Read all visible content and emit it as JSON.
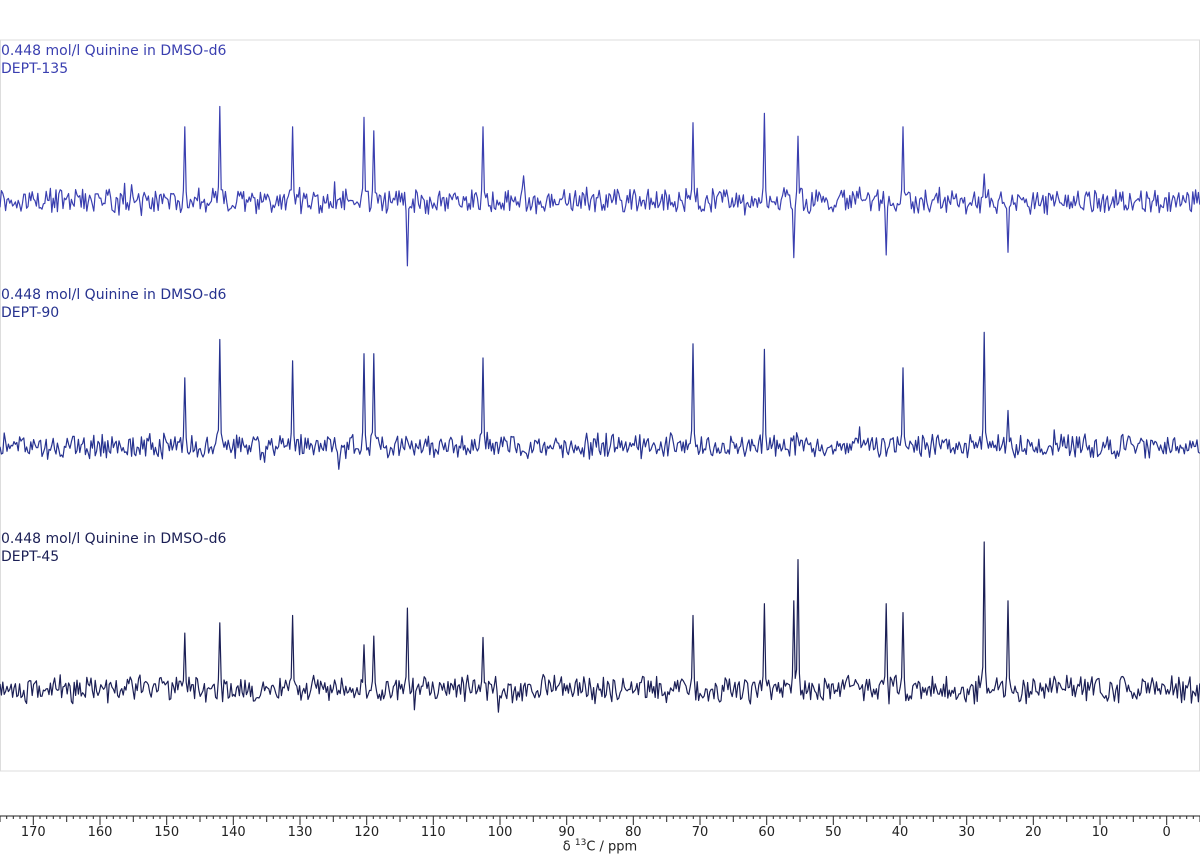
{
  "chart_data": {
    "type": "line",
    "xlabel_prefix": "δ ",
    "xlabel_sup": "13",
    "xlabel_suffix": "C / ppm",
    "xlim": [
      175,
      -5
    ],
    "x_reversed": true,
    "x_ticks": [
      170,
      160,
      150,
      140,
      130,
      120,
      110,
      100,
      90,
      80,
      70,
      60,
      50,
      40,
      30,
      20,
      10,
      0
    ],
    "series": [
      {
        "line1": "0.448 mol/l Quinine in DMSO-d6",
        "line2": "DEPT-135",
        "color": "#3a3fb0",
        "peaks": [
          {
            "x": 147.2,
            "y": 0.55
          },
          {
            "x": 142.1,
            "y": 0.7
          },
          {
            "x": 131.2,
            "y": 0.55
          },
          {
            "x": 120.5,
            "y": 0.62
          },
          {
            "x": 118.9,
            "y": 0.52
          },
          {
            "x": 113.9,
            "y": -0.48
          },
          {
            "x": 102.5,
            "y": 0.55
          },
          {
            "x": 71.1,
            "y": 0.58
          },
          {
            "x": 60.4,
            "y": 0.65
          },
          {
            "x": 56.0,
            "y": -0.42
          },
          {
            "x": 55.4,
            "y": 0.48
          },
          {
            "x": 42.1,
            "y": -0.4
          },
          {
            "x": 39.5,
            "y": 0.55
          },
          {
            "x": 27.4,
            "y": 0.2
          },
          {
            "x": 23.9,
            "y": -0.38
          }
        ]
      },
      {
        "line1": "0.448 mol/l Quinine in DMSO-d6",
        "line2": "DEPT-90",
        "color": "#26328f",
        "peaks": [
          {
            "x": 147.2,
            "y": 0.48
          },
          {
            "x": 142.1,
            "y": 0.75
          },
          {
            "x": 131.2,
            "y": 0.6
          },
          {
            "x": 120.5,
            "y": 0.65
          },
          {
            "x": 118.9,
            "y": 0.65
          },
          {
            "x": 102.5,
            "y": 0.62
          },
          {
            "x": 71.1,
            "y": 0.72
          },
          {
            "x": 60.4,
            "y": 0.68
          },
          {
            "x": 39.5,
            "y": 0.55
          },
          {
            "x": 27.4,
            "y": 0.8
          },
          {
            "x": 23.9,
            "y": 0.25
          }
        ]
      },
      {
        "line1": "0.448 mol/l Quinine in DMSO-d6",
        "line2": "DEPT-45",
        "color": "#1b1f55",
        "peaks": [
          {
            "x": 147.2,
            "y": 0.38
          },
          {
            "x": 142.1,
            "y": 0.45
          },
          {
            "x": 131.2,
            "y": 0.5
          },
          {
            "x": 120.5,
            "y": 0.3
          },
          {
            "x": 118.9,
            "y": 0.36
          },
          {
            "x": 113.9,
            "y": 0.55
          },
          {
            "x": 102.5,
            "y": 0.35
          },
          {
            "x": 71.1,
            "y": 0.5
          },
          {
            "x": 60.4,
            "y": 0.58
          },
          {
            "x": 56.0,
            "y": 0.6
          },
          {
            "x": 55.4,
            "y": 0.88
          },
          {
            "x": 42.1,
            "y": 0.58
          },
          {
            "x": 39.5,
            "y": 0.52
          },
          {
            "x": 27.4,
            "y": 1.0
          },
          {
            "x": 23.9,
            "y": 0.6
          }
        ]
      }
    ]
  }
}
